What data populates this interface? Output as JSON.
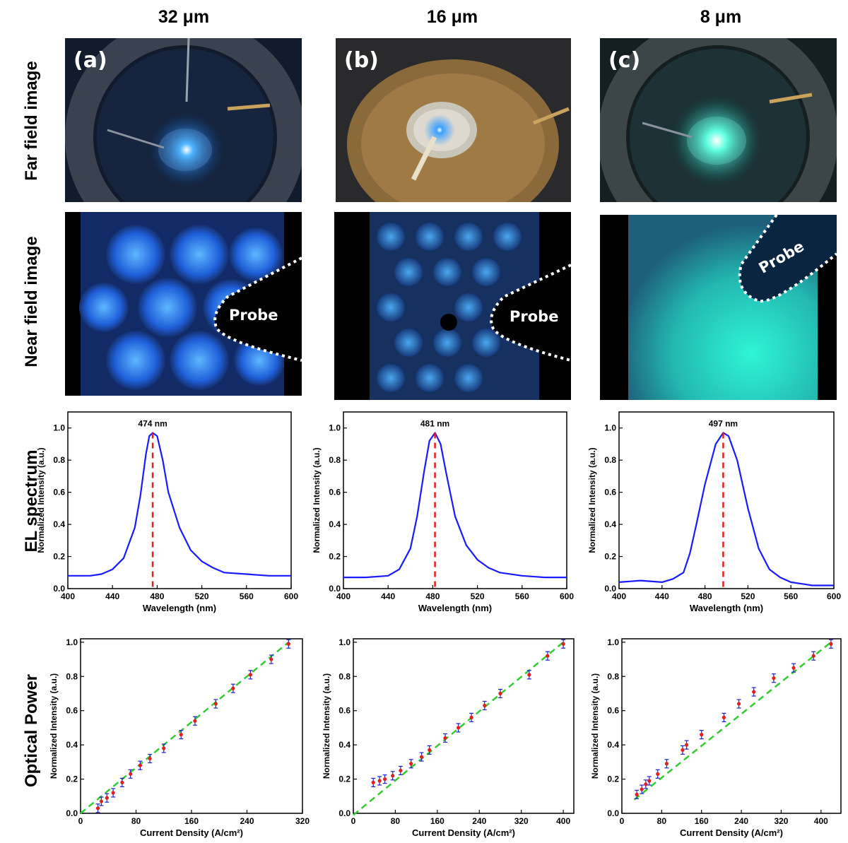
{
  "columns": [
    {
      "size": "32 μm",
      "tag": "(a)",
      "probe": "Probe"
    },
    {
      "size": "16 μm",
      "tag": "(b)",
      "probe": "Probe"
    },
    {
      "size": "8 μm",
      "tag": "(c)",
      "probe": "Probe"
    }
  ],
  "row_labels": {
    "far": "Far field image",
    "near": "Near field image",
    "el": "EL spectrum",
    "op": "Optical Power"
  },
  "colors": {
    "spectrum_line": "#1a1aff",
    "peak_marker": "#e02020",
    "fit_line": "#33cc33",
    "point": "#e02020",
    "errorbar": "#2222cc"
  },
  "chart_data": [
    {
      "type": "line",
      "panel": "a-el",
      "xlabel": "Wavelength (nm)",
      "ylabel": "Normalized Intensity (a.u.)",
      "xlim": [
        400,
        600
      ],
      "ylim": [
        0,
        1.1
      ],
      "xticks": [
        400,
        440,
        480,
        520,
        560,
        600
      ],
      "yticks": [
        0.0,
        0.2,
        0.4,
        0.6,
        0.8,
        1.0
      ],
      "peak_label": "474 nm",
      "peak_x": 476,
      "peak_y": 0.97,
      "series": [
        {
          "x": [
            400,
            420,
            430,
            440,
            450,
            460,
            465,
            470,
            473,
            476,
            480,
            485,
            490,
            500,
            510,
            520,
            530,
            540,
            560,
            580,
            600
          ],
          "y": [
            0.08,
            0.08,
            0.09,
            0.12,
            0.19,
            0.38,
            0.58,
            0.84,
            0.95,
            0.97,
            0.95,
            0.8,
            0.6,
            0.38,
            0.24,
            0.17,
            0.13,
            0.1,
            0.09,
            0.08,
            0.08
          ]
        }
      ]
    },
    {
      "type": "line",
      "panel": "b-el",
      "xlabel": "Wavelength (nm)",
      "ylabel": "Normalized Intensity (a.u.)",
      "xlim": [
        400,
        600
      ],
      "ylim": [
        0,
        1.1
      ],
      "xticks": [
        400,
        440,
        480,
        520,
        560,
        600
      ],
      "yticks": [
        0.0,
        0.2,
        0.4,
        0.6,
        0.8,
        1.0
      ],
      "peak_label": "481 nm",
      "peak_x": 482,
      "peak_y": 0.97,
      "series": [
        {
          "x": [
            400,
            420,
            440,
            450,
            460,
            466,
            472,
            477,
            482,
            487,
            492,
            500,
            510,
            520,
            530,
            540,
            560,
            580,
            600
          ],
          "y": [
            0.07,
            0.07,
            0.08,
            0.12,
            0.25,
            0.45,
            0.72,
            0.92,
            0.97,
            0.9,
            0.72,
            0.45,
            0.27,
            0.18,
            0.13,
            0.1,
            0.08,
            0.07,
            0.07
          ]
        }
      ]
    },
    {
      "type": "line",
      "panel": "c-el",
      "xlabel": "Wavelength (nm)",
      "ylabel": "Normalized Intensity (a.u.)",
      "xlim": [
        400,
        600
      ],
      "ylim": [
        0,
        1.1
      ],
      "xticks": [
        400,
        440,
        480,
        520,
        560,
        600
      ],
      "yticks": [
        0.0,
        0.2,
        0.4,
        0.6,
        0.8,
        1.0
      ],
      "peak_label": "497 nm",
      "peak_x": 497,
      "peak_y": 0.97,
      "series": [
        {
          "x": [
            400,
            420,
            440,
            450,
            460,
            466,
            472,
            480,
            490,
            497,
            502,
            510,
            520,
            530,
            540,
            550,
            560,
            570,
            580,
            590,
            600
          ],
          "y": [
            0.04,
            0.05,
            0.04,
            0.06,
            0.1,
            0.22,
            0.4,
            0.65,
            0.9,
            0.97,
            0.95,
            0.8,
            0.5,
            0.25,
            0.12,
            0.07,
            0.04,
            0.03,
            0.02,
            0.02,
            0.02
          ]
        }
      ]
    },
    {
      "type": "scatter",
      "panel": "a-op",
      "xlabel": "Current Density (A/cm²)",
      "ylabel": "Normalized Intensity (a.u.)",
      "xlim": [
        0,
        320
      ],
      "ylim": [
        0,
        1.02
      ],
      "xticks": [
        0,
        80,
        160,
        240,
        320
      ],
      "yticks": [
        0.0,
        0.2,
        0.4,
        0.6,
        0.8,
        1.0
      ],
      "fit": {
        "x": [
          0,
          300
        ],
        "y": [
          0.0,
          1.0
        ]
      },
      "x": [
        25,
        30,
        38,
        47,
        60,
        72,
        86,
        100,
        120,
        145,
        165,
        195,
        220,
        245,
        275,
        300
      ],
      "y": [
        0.03,
        0.07,
        0.09,
        0.12,
        0.18,
        0.23,
        0.28,
        0.32,
        0.38,
        0.46,
        0.54,
        0.64,
        0.73,
        0.81,
        0.9,
        0.99
      ]
    },
    {
      "type": "scatter",
      "panel": "b-op",
      "xlabel": "Current Density (A/cm²)",
      "ylabel": "Normalized Intensity (a.u.)",
      "xlim": [
        0,
        420
      ],
      "ylim": [
        0,
        1.02
      ],
      "xticks": [
        0,
        80,
        160,
        240,
        320,
        400
      ],
      "yticks": [
        0.0,
        0.2,
        0.4,
        0.6,
        0.8,
        1.0
      ],
      "fit": {
        "x": [
          0,
          400
        ],
        "y": [
          -0.01,
          1.0
        ]
      },
      "x": [
        38,
        50,
        60,
        75,
        90,
        110,
        130,
        145,
        175,
        200,
        225,
        250,
        280,
        335,
        370,
        400
      ],
      "y": [
        0.18,
        0.19,
        0.2,
        0.22,
        0.25,
        0.29,
        0.33,
        0.37,
        0.44,
        0.5,
        0.56,
        0.63,
        0.7,
        0.81,
        0.92,
        0.99
      ]
    },
    {
      "type": "scatter",
      "panel": "c-op",
      "xlabel": "Current Density (A/cm²)",
      "ylabel": "Normalized Intensity (a.u.)",
      "xlim": [
        0,
        440
      ],
      "ylim": [
        0,
        1.02
      ],
      "xticks": [
        0,
        80,
        160,
        240,
        320,
        400
      ],
      "yticks": [
        0.0,
        0.2,
        0.4,
        0.6,
        0.8,
        1.0
      ],
      "fit": {
        "x": [
          25,
          420
        ],
        "y": [
          0.08,
          1.0
        ]
      },
      "x": [
        30,
        40,
        48,
        55,
        72,
        90,
        122,
        130,
        160,
        205,
        235,
        265,
        305,
        345,
        385,
        420
      ],
      "y": [
        0.11,
        0.14,
        0.17,
        0.19,
        0.23,
        0.29,
        0.37,
        0.4,
        0.46,
        0.56,
        0.64,
        0.71,
        0.79,
        0.85,
        0.92,
        0.99
      ]
    }
  ]
}
